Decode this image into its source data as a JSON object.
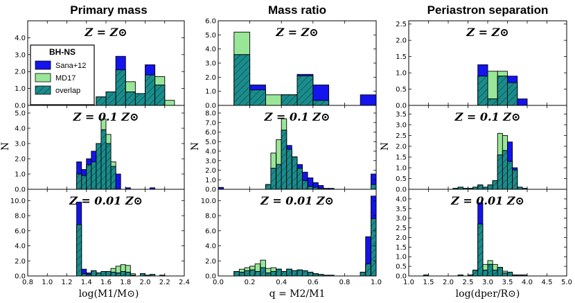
{
  "columns": [
    "Primary mass",
    "Mass ratio",
    "Periastron separation"
  ],
  "row_labels": [
    "Z = Z⊙",
    "Z = 0.1 Z⊙",
    "Z = 0.01 Z⊙"
  ],
  "ylabel": "N",
  "xlabels": [
    "log(M1/M⊙)",
    "q = M2/M1",
    "log(dper/R⊙)"
  ],
  "legend": {
    "title": "BH-NS",
    "entries": [
      {
        "label": "Sana+12",
        "color": "#1414ee"
      },
      {
        "label": "MD17",
        "color": "#99e699"
      },
      {
        "label": "overlap",
        "color": "#1a8c8c"
      }
    ]
  },
  "colors": {
    "sana": "#1414ee",
    "md17": "#99e699",
    "overlap": "#1a8c8c"
  },
  "chart_data": [
    {
      "type": "bar",
      "panel": "primary-mass-Zsun",
      "title": "Primary mass",
      "label": "Z = Z⊙",
      "xlim": [
        0.8,
        2.4
      ],
      "ylim": [
        0,
        5.0
      ],
      "yticks": [
        0.0,
        1.0,
        2.0,
        3.0,
        4.0
      ],
      "bin_width": 0.1,
      "bins_left": [
        1.5,
        1.6,
        1.7,
        1.8,
        1.9,
        2.0,
        2.1,
        2.2,
        2.3
      ],
      "sana": [
        0.5,
        0.8,
        2.9,
        0.8,
        0.7,
        2.4,
        1.2,
        0.0,
        0.0
      ],
      "md17": [
        0.5,
        0.8,
        2.1,
        1.4,
        0.7,
        1.8,
        1.7,
        0.3,
        0.0
      ],
      "overlap": [
        0.5,
        0.8,
        2.1,
        0.8,
        0.7,
        1.8,
        1.2,
        0.0,
        0.0
      ]
    },
    {
      "type": "bar",
      "panel": "mass-ratio-Zsun",
      "title": "Mass ratio",
      "label": "Z = Z⊙",
      "xlim": [
        0.0,
        1.0
      ],
      "ylim": [
        0,
        6.0
      ],
      "yticks": [
        0.0,
        1.0,
        2.0,
        3.0,
        4.0,
        5.0,
        6.0
      ],
      "bin_width": 0.1,
      "bins_left": [
        0.1,
        0.2,
        0.3,
        0.4,
        0.5,
        0.6,
        0.7,
        0.8,
        0.9
      ],
      "sana": [
        3.6,
        1.45,
        0.0,
        0.75,
        2.2,
        1.45,
        0.0,
        0.0,
        0.75
      ],
      "md17": [
        5.2,
        1.1,
        0.75,
        0.75,
        2.15,
        0.35,
        0.0,
        0.0,
        0.0
      ],
      "overlap": [
        3.6,
        1.1,
        0.0,
        0.75,
        2.1,
        0.35,
        0.0,
        0.0,
        0.0
      ]
    },
    {
      "type": "bar",
      "panel": "periastron-Zsun",
      "title": "Periastron separation",
      "label": "Z = Z⊙",
      "xlim": [
        1.0,
        5.0
      ],
      "ylim": [
        0,
        2.6
      ],
      "yticks": [
        0.0,
        0.5,
        1.0,
        1.5,
        2.0,
        2.5
      ],
      "bin_width": 0.25,
      "bins_left": [
        2.75,
        3.0,
        3.25,
        3.5,
        3.75,
        4.0
      ],
      "sana": [
        1.25,
        0.2,
        0.9,
        0.9,
        0.2,
        0.0
      ],
      "md17": [
        0.9,
        1.05,
        1.05,
        0.7,
        0.0,
        0.0
      ],
      "overlap": [
        0.9,
        0.2,
        0.9,
        0.7,
        0.0,
        0.0
      ]
    },
    {
      "type": "bar",
      "panel": "primary-mass-0.1Zsun",
      "label": "Z = 0.1 Z⊙",
      "xlim": [
        0.8,
        2.4
      ],
      "ylim": [
        0,
        5.5
      ],
      "yticks": [
        0.0,
        1.0,
        2.0,
        3.0,
        4.0,
        5.0
      ],
      "bin_width": 0.05,
      "bins_left": [
        1.3,
        1.35,
        1.4,
        1.45,
        1.5,
        1.55,
        1.6,
        1.65,
        1.7,
        1.75,
        1.8,
        1.85,
        1.9,
        1.95,
        2.0,
        2.05,
        2.1
      ],
      "sana": [
        1.8,
        1.3,
        2.0,
        2.5,
        3.0,
        3.9,
        3.0,
        1.5,
        1.0,
        0.0,
        0.1,
        0.0,
        0.0,
        0.0,
        0.0,
        0.1,
        0.0
      ],
      "md17": [
        1.0,
        0.9,
        1.6,
        1.8,
        3.0,
        4.6,
        3.6,
        1.8,
        0.0,
        0.0,
        0.0,
        0.0,
        0.0,
        0.0,
        0.0,
        0.0,
        0.0
      ],
      "overlap": [
        1.0,
        0.9,
        1.6,
        1.8,
        3.0,
        3.9,
        3.0,
        1.5,
        0.0,
        0.0,
        0.0,
        0.0,
        0.0,
        0.0,
        0.0,
        0.0,
        0.0
      ]
    },
    {
      "type": "bar",
      "panel": "mass-ratio-0.1Zsun",
      "label": "Z = 0.1 Z⊙",
      "xlim": [
        0.0,
        1.0
      ],
      "ylim": [
        0,
        8.8
      ],
      "yticks": [
        0.0,
        1.0,
        2.0,
        3.0,
        4.0,
        5.0,
        6.0,
        7.0,
        8.0
      ],
      "bin_width": 0.033,
      "bins_left": [
        0.0,
        0.033,
        0.3,
        0.333,
        0.367,
        0.4,
        0.433,
        0.467,
        0.5,
        0.533,
        0.567,
        0.6,
        0.633,
        0.667,
        0.7,
        0.733,
        0.967
      ],
      "sana": [
        0.2,
        0.0,
        0.5,
        2.2,
        2.6,
        6.2,
        4.6,
        3.4,
        2.6,
        1.8,
        1.2,
        0.7,
        0.4,
        0.1,
        0.1,
        0.0,
        1.6
      ],
      "md17": [
        0.0,
        0.0,
        0.5,
        3.8,
        5.2,
        7.4,
        4.2,
        3.4,
        2.2,
        0.9,
        0.3,
        0.2,
        0.1,
        0.0,
        0.0,
        0.0,
        0.5
      ],
      "overlap": [
        0.0,
        0.0,
        0.5,
        2.2,
        2.6,
        6.2,
        4.2,
        3.4,
        2.2,
        0.9,
        0.3,
        0.2,
        0.1,
        0.0,
        0.0,
        0.0,
        0.5
      ]
    },
    {
      "type": "bar",
      "panel": "periastron-0.1Zsun",
      "label": "Z = 0.1 Z⊙",
      "xlim": [
        1.0,
        5.0
      ],
      "ylim": [
        0,
        3.9
      ],
      "yticks": [
        0.0,
        0.5,
        1.0,
        1.5,
        2.0,
        2.5,
        3.0,
        3.5
      ],
      "bin_width": 0.125,
      "bins_left": [
        2.125,
        2.25,
        2.375,
        2.5,
        2.625,
        2.75,
        2.875,
        3.0,
        3.125,
        3.25,
        3.375,
        3.5,
        3.625,
        3.75,
        3.875
      ],
      "sana": [
        0.05,
        0.1,
        0.05,
        0.05,
        0.1,
        0.2,
        0.1,
        0.2,
        0.4,
        1.6,
        1.8,
        2.2,
        1.0,
        0.1,
        0.05
      ],
      "md17": [
        0.05,
        0.1,
        0.05,
        0.05,
        0.1,
        0.2,
        0.1,
        0.2,
        0.4,
        2.6,
        2.5,
        1.3,
        0.9,
        0.1,
        0.05
      ],
      "overlap": [
        0.05,
        0.1,
        0.05,
        0.05,
        0.1,
        0.2,
        0.1,
        0.2,
        0.4,
        1.6,
        1.8,
        1.3,
        0.9,
        0.1,
        0.05
      ]
    },
    {
      "type": "bar",
      "panel": "primary-mass-0.01Zsun",
      "label": "Z = 0.01 Z⊙",
      "xlim": [
        0.8,
        2.4
      ],
      "ylim": [
        0,
        11.5
      ],
      "yticks": [
        0.0,
        2.0,
        4.0,
        6.0,
        8.0,
        10.0
      ],
      "bin_width": 0.05,
      "bins_left": [
        1.3,
        1.35,
        1.4,
        1.45,
        1.5,
        1.55,
        1.6,
        1.65,
        1.7,
        1.75,
        1.8,
        1.85,
        1.9,
        1.95,
        2.0,
        2.05,
        2.1,
        2.15,
        2.2
      ],
      "sana": [
        9.8,
        0.9,
        0.4,
        0.7,
        0.4,
        0.6,
        0.6,
        0.5,
        0.4,
        0.6,
        0.5,
        0.1,
        0.0,
        0.3,
        0.1,
        0.2,
        0.0,
        0.1,
        0.0
      ],
      "md17": [
        6.8,
        0.3,
        0.2,
        0.7,
        0.4,
        0.6,
        0.6,
        1.0,
        1.3,
        1.5,
        1.4,
        0.3,
        0.0,
        0.3,
        0.1,
        0.2,
        0.0,
        0.1,
        0.0
      ],
      "overlap": [
        6.8,
        0.3,
        0.2,
        0.7,
        0.4,
        0.6,
        0.6,
        0.5,
        0.4,
        0.6,
        0.5,
        0.1,
        0.0,
        0.3,
        0.1,
        0.2,
        0.0,
        0.1,
        0.0
      ]
    },
    {
      "type": "bar",
      "panel": "mass-ratio-0.01Zsun",
      "label": "Z = 0.01 Z⊙",
      "xlim": [
        0.0,
        1.0
      ],
      "ylim": [
        0,
        11.5
      ],
      "yticks": [
        0.0,
        2.0,
        4.0,
        6.0,
        8.0,
        10.0
      ],
      "bin_width": 0.033,
      "bins_left": [
        0.1,
        0.133,
        0.167,
        0.2,
        0.233,
        0.267,
        0.3,
        0.333,
        0.367,
        0.4,
        0.433,
        0.467,
        0.5,
        0.533,
        0.567,
        0.6,
        0.633,
        0.667,
        0.7,
        0.9,
        0.933,
        0.967
      ],
      "sana": [
        0.6,
        0.5,
        0.7,
        0.8,
        0.6,
        1.1,
        0.4,
        0.6,
        0.9,
        0.6,
        0.9,
        0.7,
        0.8,
        0.7,
        0.5,
        0.3,
        0.2,
        0.1,
        0.1,
        0.5,
        5.2,
        10.6
      ],
      "md17": [
        0.6,
        0.9,
        1.1,
        1.3,
        1.6,
        2.1,
        1.0,
        1.1,
        0.9,
        0.6,
        0.9,
        0.7,
        0.8,
        0.7,
        0.5,
        0.3,
        0.2,
        0.1,
        0.1,
        0.5,
        1.6,
        7.6
      ],
      "overlap": [
        0.6,
        0.5,
        0.7,
        0.8,
        0.6,
        1.1,
        0.4,
        0.6,
        0.9,
        0.6,
        0.9,
        0.7,
        0.8,
        0.7,
        0.5,
        0.3,
        0.2,
        0.1,
        0.1,
        0.5,
        1.6,
        7.6
      ]
    },
    {
      "type": "bar",
      "panel": "periastron-0.01Zsun",
      "label": "Z = 0.01 Z⊙",
      "xlim": [
        1.0,
        5.0
      ],
      "ylim": [
        0,
        4.5
      ],
      "yticks": [
        0.0,
        0.5,
        1.0,
        1.5,
        2.0,
        2.5,
        3.0,
        3.5,
        4.0
      ],
      "bin_width": 0.125,
      "bins_left": [
        1.375,
        2.25,
        2.5,
        2.625,
        2.75,
        2.875,
        3.0,
        3.125,
        3.25,
        3.375,
        3.5,
        3.625,
        3.75,
        3.875
      ],
      "sana": [
        0.05,
        0.05,
        0.05,
        0.3,
        3.8,
        0.3,
        0.6,
        0.3,
        0.45,
        0.15,
        0.2,
        0.05,
        0.05,
        0.05
      ],
      "md17": [
        0.05,
        0.05,
        0.05,
        0.3,
        2.7,
        0.6,
        0.8,
        0.6,
        0.45,
        0.25,
        0.2,
        0.05,
        0.05,
        0.05
      ],
      "overlap": [
        0.05,
        0.05,
        0.05,
        0.3,
        2.7,
        0.3,
        0.6,
        0.3,
        0.45,
        0.15,
        0.2,
        0.05,
        0.05,
        0.05
      ]
    }
  ],
  "xticks": [
    [
      0.8,
      1.0,
      1.2,
      1.4,
      1.6,
      1.8,
      2.0,
      2.2,
      2.4
    ],
    [
      0.0,
      0.2,
      0.4,
      0.6,
      0.8,
      1.0
    ],
    [
      1.0,
      1.5,
      2.0,
      2.5,
      3.0,
      3.5,
      4.0,
      4.5,
      5.0
    ]
  ]
}
